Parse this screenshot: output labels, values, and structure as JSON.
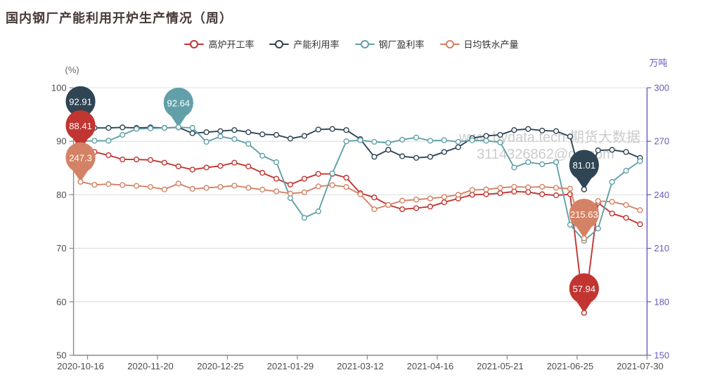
{
  "title": "国内钢厂产能利用开炉生产情况（周）",
  "watermark": {
    "line1": "www.bydata.tech-期货大数据",
    "line2": "3114326862@qq.com",
    "color": "#cccccc"
  },
  "chart_data": {
    "type": "line",
    "title": "国内钢厂产能利用开炉生产情况（周）",
    "legend_position": "top",
    "grid": true,
    "categories": [
      "2020-10-16",
      "2020-10-23",
      "2020-10-30",
      "2020-11-06",
      "2020-11-13",
      "2020-11-20",
      "2020-11-27",
      "2020-12-04",
      "2020-12-11",
      "2020-12-18",
      "2020-12-25",
      "2021-01-01",
      "2021-01-08",
      "2021-01-15",
      "2021-01-22",
      "2021-01-29",
      "2021-02-05",
      "2021-02-19",
      "2021-02-26",
      "2021-03-05",
      "2021-03-12",
      "2021-03-19",
      "2021-03-26",
      "2021-04-02",
      "2021-04-09",
      "2021-04-16",
      "2021-04-23",
      "2021-04-30",
      "2021-05-07",
      "2021-05-14",
      "2021-05-21",
      "2021-05-28",
      "2021-06-04",
      "2021-06-11",
      "2021-06-18",
      "2021-06-25",
      "2021-07-02",
      "2021-07-09",
      "2021-07-16",
      "2021-07-23",
      "2021-07-30"
    ],
    "x_tick_every": 5,
    "left_axis": {
      "name": "(%)",
      "min": 50,
      "max": 100,
      "ticks": [
        100,
        90,
        80,
        70,
        60,
        50
      ],
      "color": "#4d4d4d"
    },
    "right_axis": {
      "name": "万吨",
      "min": 150,
      "max": 300,
      "ticks": [
        300,
        270,
        240,
        210,
        180,
        150
      ],
      "color": "#675bba"
    },
    "series": [
      {
        "name": "高炉开工率",
        "color": "#c23531",
        "axis": "left",
        "values": [
          88.41,
          88.0,
          87.4,
          86.6,
          86.6,
          86.5,
          86.0,
          85.3,
          84.7,
          85.1,
          85.4,
          86.0,
          85.3,
          84.1,
          83.0,
          81.9,
          83.0,
          83.9,
          83.9,
          83.2,
          80.3,
          79.5,
          78.1,
          77.3,
          77.5,
          77.8,
          78.6,
          79.3,
          80.0,
          80.1,
          80.3,
          80.6,
          80.5,
          80.1,
          79.9,
          80.1,
          57.94,
          78.5,
          76.5,
          75.7,
          74.5
        ]
      },
      {
        "name": "产能利用率",
        "color": "#2f4554",
        "axis": "left",
        "values": [
          92.91,
          92.5,
          92.5,
          92.6,
          92.5,
          92.6,
          92.5,
          92.6,
          91.5,
          91.7,
          91.9,
          92.1,
          91.7,
          91.3,
          91.2,
          90.5,
          91.0,
          92.2,
          92.3,
          92.1,
          90.4,
          87.1,
          88.4,
          87.2,
          86.9,
          87.1,
          88.0,
          88.9,
          90.6,
          91.0,
          91.2,
          92.1,
          92.3,
          92.0,
          91.9,
          90.9,
          81.01,
          88.3,
          88.4,
          88.0,
          86.9
        ]
      },
      {
        "name": "钢厂盈利率",
        "color": "#61a0a8",
        "axis": "left",
        "values": [
          90.0,
          90.1,
          90.1,
          91.2,
          92.3,
          92.4,
          92.5,
          92.64,
          92.5,
          89.9,
          90.9,
          90.4,
          89.5,
          87.3,
          86.1,
          79.4,
          75.7,
          76.9,
          84.0,
          90.0,
          90.2,
          89.9,
          89.7,
          90.3,
          90.7,
          90.1,
          90.2,
          89.9,
          90.2,
          90.1,
          89.8,
          85.1,
          86.1,
          85.7,
          86.1,
          74.4,
          71.4,
          73.7,
          82.4,
          84.5,
          86.3
        ]
      },
      {
        "name": "日均铁水产量",
        "color": "#d48265",
        "axis": "right",
        "values": [
          247.3,
          245.6,
          246.0,
          245.5,
          245.0,
          244.4,
          243.0,
          246.3,
          243.3,
          243.9,
          244.4,
          245.1,
          243.9,
          242.9,
          241.9,
          240.7,
          241.4,
          244.7,
          245.4,
          244.4,
          240.3,
          231.9,
          234.3,
          236.7,
          237.3,
          237.9,
          238.8,
          240.0,
          242.7,
          243.0,
          243.9,
          244.5,
          244.2,
          244.5,
          243.9,
          243.4,
          215.63,
          236.5,
          236.1,
          234.3,
          231.4
        ]
      }
    ],
    "point_markers": [
      {
        "series": 1,
        "index": 0,
        "label": "92.91"
      },
      {
        "series": 0,
        "index": 0,
        "label": "88.41"
      },
      {
        "series": 3,
        "index": 0,
        "label": "247.3"
      },
      {
        "series": 2,
        "index": 7,
        "label": "92.64"
      },
      {
        "series": 1,
        "index": 36,
        "label": "81.01"
      },
      {
        "series": 3,
        "index": 36,
        "label": "215.63"
      },
      {
        "series": 0,
        "index": 36,
        "label": "57.94"
      }
    ]
  }
}
